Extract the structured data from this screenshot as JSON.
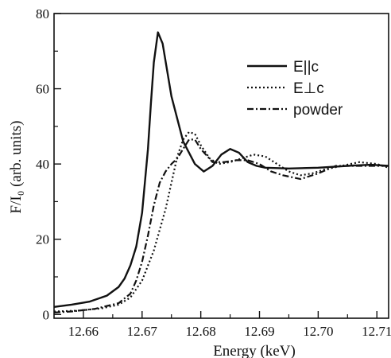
{
  "chart_data": {
    "type": "line",
    "title": "",
    "xlabel": "Energy (keV)",
    "ylabel": "F/I₀ (arb. units)",
    "xlim": [
      12.655,
      12.712
    ],
    "ylim": [
      -1,
      80
    ],
    "xticks": [
      12.66,
      12.67,
      12.68,
      12.69,
      12.7,
      12.71
    ],
    "xtick_labels": [
      "12.66",
      "12.67",
      "12.68",
      "12.69",
      "12.70",
      "12.71"
    ],
    "yticks": [
      0,
      20,
      40,
      60,
      80
    ],
    "ytick_labels": [
      "0",
      "20",
      "40",
      "60",
      "80"
    ],
    "grid": false,
    "legend_position": "top-right",
    "series": [
      {
        "name": "E||c",
        "style": "solid",
        "x": [
          12.655,
          12.658,
          12.661,
          12.664,
          12.666,
          12.667,
          12.668,
          12.669,
          12.67,
          12.671,
          12.6715,
          12.672,
          12.6727,
          12.6735,
          12.675,
          12.677,
          12.679,
          12.6805,
          12.682,
          12.6835,
          12.685,
          12.6865,
          12.688,
          12.6895,
          12.691,
          12.695,
          12.7,
          12.703,
          12.706,
          12.709,
          12.712
        ],
        "y": [
          2.0,
          2.6,
          3.4,
          5.0,
          7.3,
          9.5,
          13.0,
          18.0,
          27.0,
          44.0,
          56.0,
          67.0,
          75.0,
          72.0,
          58.0,
          46.0,
          40.0,
          38.0,
          39.5,
          42.5,
          44.0,
          43.0,
          40.5,
          39.5,
          39.0,
          38.8,
          39.0,
          39.3,
          39.6,
          39.8,
          39.5
        ]
      },
      {
        "name": "E⊥c",
        "style": "dotted",
        "x": [
          12.655,
          12.659,
          12.663,
          12.666,
          12.668,
          12.67,
          12.672,
          12.674,
          12.675,
          12.676,
          12.677,
          12.678,
          12.679,
          12.68,
          12.6815,
          12.683,
          12.685,
          12.687,
          12.689,
          12.691,
          12.693,
          12.695,
          12.697,
          12.699,
          12.701,
          12.704,
          12.707,
          12.71,
          12.712
        ],
        "y": [
          0.8,
          1.0,
          1.6,
          2.6,
          4.5,
          9.0,
          17.0,
          28.0,
          35.0,
          42.0,
          46.5,
          48.5,
          48.0,
          45.0,
          41.5,
          40.0,
          40.5,
          41.5,
          42.5,
          42.0,
          40.0,
          38.0,
          37.0,
          37.5,
          38.5,
          39.5,
          40.5,
          40.0,
          39.0
        ]
      },
      {
        "name": "powder",
        "style": "dashdot",
        "x": [
          12.655,
          12.658,
          12.662,
          12.666,
          12.668,
          12.669,
          12.67,
          12.671,
          12.672,
          12.673,
          12.674,
          12.675,
          12.676,
          12.677,
          12.678,
          12.679,
          12.68,
          12.682,
          12.684,
          12.686,
          12.688,
          12.69,
          12.692,
          12.694,
          12.697,
          12.7,
          12.703,
          12.706,
          12.709,
          12.712
        ],
        "y": [
          0.5,
          0.8,
          1.5,
          3.0,
          5.5,
          9.0,
          14.0,
          21.0,
          29.0,
          35.0,
          38.0,
          40.0,
          41.5,
          44.0,
          46.5,
          46.5,
          44.0,
          40.5,
          40.5,
          41.0,
          41.0,
          40.0,
          38.0,
          37.0,
          36.0,
          37.5,
          39.5,
          39.5,
          39.5,
          39.5
        ]
      }
    ]
  }
}
